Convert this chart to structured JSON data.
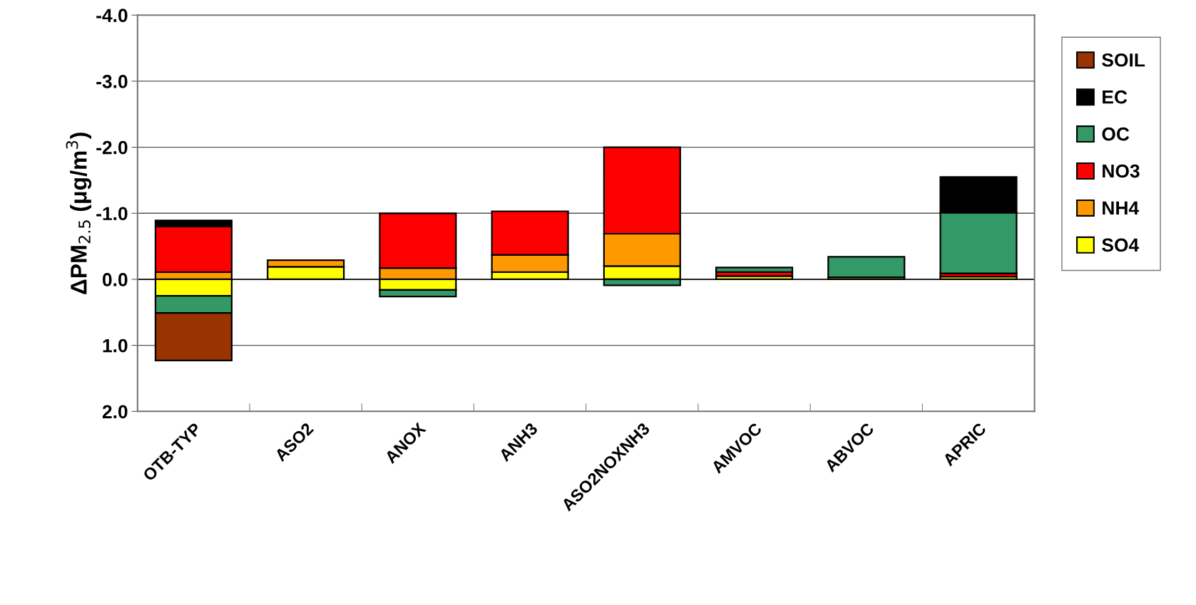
{
  "chart_data": {
    "type": "bar",
    "stacked": true,
    "ylabel": "ΔPM$_{2.5}$ (μg/m$^{3}$)",
    "categories": [
      "OTB-TYP",
      "ASO2",
      "ANOX",
      "ANH3",
      "ASO2NOXNH3",
      "AMVOC",
      "ABVOC",
      "APRIC"
    ],
    "series": [
      {
        "name": "SO4",
        "color": "#ffff00",
        "values": [
          0.25,
          -0.19,
          0.16,
          -0.11,
          -0.2,
          -0.05,
          -0.03,
          -0.04
        ]
      },
      {
        "name": "NH4",
        "color": "#ff9900",
        "values": [
          -0.11,
          -0.1,
          -0.17,
          -0.26,
          -0.49,
          null,
          null,
          null
        ]
      },
      {
        "name": "NO3",
        "color": "#ff0000",
        "values": [
          -0.69,
          null,
          -0.83,
          -0.66,
          -1.31,
          -0.06,
          null,
          -0.05
        ]
      },
      {
        "name": "OC",
        "color": "#339966",
        "values": [
          0.26,
          null,
          0.1,
          null,
          0.09,
          -0.07,
          -0.31,
          -0.92
        ]
      },
      {
        "name": "EC",
        "color": "#000000",
        "values": [
          -0.09,
          null,
          null,
          null,
          null,
          null,
          null,
          -0.54
        ]
      },
      {
        "name": "SOIL",
        "color": "#993300",
        "values": [
          0.72,
          null,
          null,
          null,
          null,
          null,
          null,
          null
        ]
      }
    ],
    "ylim": [
      2.0,
      -4.0
    ],
    "yticks": [
      {
        "value": -4,
        "label": "-4.0"
      },
      {
        "value": -3,
        "label": "-3.0"
      },
      {
        "value": -2,
        "label": "-2.0"
      },
      {
        "value": -1,
        "label": "-1.0"
      },
      {
        "value": 0,
        "label": "0.0"
      },
      {
        "value": 1,
        "label": "1.0"
      },
      {
        "value": 2,
        "label": "2.0"
      }
    ],
    "grid": "y",
    "legend": "right"
  }
}
